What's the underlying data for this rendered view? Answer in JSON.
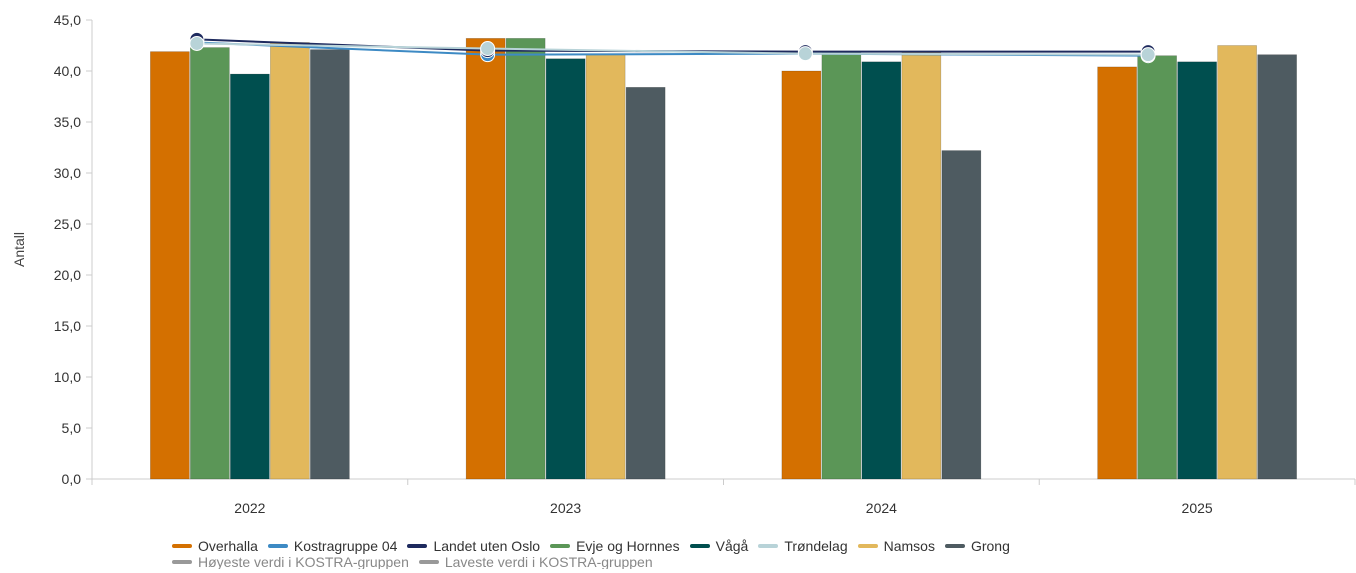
{
  "chart_data": {
    "type": "bar",
    "ylabel": "Antall",
    "xlabel": "",
    "ylim": [
      0,
      45
    ],
    "yticks": [
      "0,0",
      "5,0",
      "10,0",
      "15,0",
      "20,0",
      "25,0",
      "30,0",
      "35,0",
      "40,0",
      "45,0"
    ],
    "ytick_values": [
      0,
      5,
      10,
      15,
      20,
      25,
      30,
      35,
      40,
      45
    ],
    "categories": [
      "2022",
      "2023",
      "2024",
      "2025"
    ],
    "grid": false,
    "legend_position": "bottom",
    "bar_series": [
      {
        "name": "Overhalla",
        "color": "#d47000",
        "values": [
          41.9,
          43.2,
          40.0,
          40.4
        ]
      },
      {
        "name": "Evje og Hornnes",
        "color": "#5b9657",
        "values": [
          42.3,
          43.2,
          41.8,
          41.5
        ]
      },
      {
        "name": "Vågå",
        "color": "#004f4f",
        "values": [
          39.7,
          41.2,
          40.9,
          40.9
        ]
      },
      {
        "name": "Namsos",
        "color": "#e2b85c",
        "values": [
          42.8,
          41.6,
          41.8,
          42.5
        ]
      },
      {
        "name": "Grong",
        "color": "#4e5b61",
        "values": [
          42.1,
          38.4,
          32.2,
          41.6
        ]
      }
    ],
    "line_series": [
      {
        "name": "Kostragruppe 04",
        "color": "#3d8ac4",
        "values": [
          42.8,
          41.6,
          41.7,
          41.5
        ]
      },
      {
        "name": "Landet uten Oslo",
        "color": "#1e2a5e",
        "values": [
          43.1,
          42.0,
          41.9,
          41.9
        ]
      },
      {
        "name": "Trøndelag",
        "color": "#b8d3d8",
        "values": [
          42.7,
          42.2,
          41.7,
          41.6
        ]
      }
    ],
    "legend": [
      {
        "name": "Overhalla",
        "color": "#d47000"
      },
      {
        "name": "Kostragruppe 04",
        "color": "#3d8ac4"
      },
      {
        "name": "Landet uten Oslo",
        "color": "#1e2a5e"
      },
      {
        "name": "Evje og Hornnes",
        "color": "#5b9657"
      },
      {
        "name": "Vågå",
        "color": "#004f4f"
      },
      {
        "name": "Trøndelag",
        "color": "#b8d3d8"
      },
      {
        "name": "Namsos",
        "color": "#e2b85c"
      },
      {
        "name": "Grong",
        "color": "#4e5b61"
      }
    ],
    "legend_second_row": [
      {
        "name": "Høyeste verdi i KOSTRA-gruppen",
        "color": "#999999"
      },
      {
        "name": "Laveste verdi i KOSTRA-gruppen",
        "color": "#999999"
      }
    ]
  }
}
